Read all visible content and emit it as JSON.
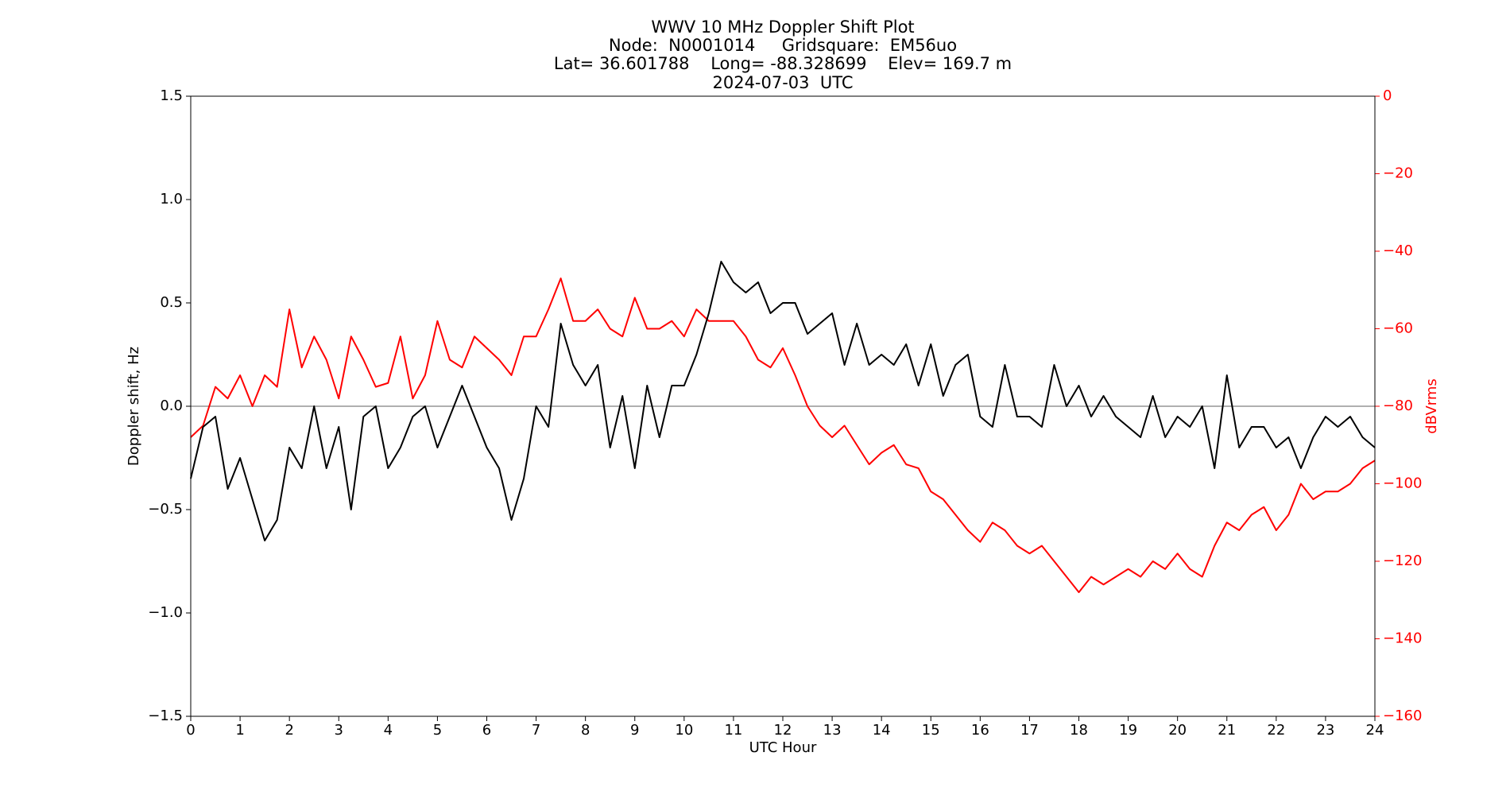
{
  "chart_data": {
    "type": "line",
    "title": "WWV 10 MHz Doppler Shift Plot",
    "subtitle": [
      "Node:  N0001014     Gridsquare:  EM56uo",
      "Lat= 36.601788    Long= -88.328699    Elev= 169.7 m",
      "2024-07-03  UTC"
    ],
    "xlabel": "UTC Hour",
    "ylabel": "Doppler shift, Hz",
    "y2label": "dBVrms",
    "xlim": [
      0,
      24
    ],
    "xticks": [
      0,
      1,
      2,
      3,
      4,
      5,
      6,
      7,
      8,
      9,
      10,
      11,
      12,
      13,
      14,
      15,
      16,
      17,
      18,
      19,
      20,
      21,
      22,
      23,
      24
    ],
    "ylim": [
      -1.5,
      1.5
    ],
    "yticks": [
      {
        "value": -1.5,
        "label": "−1.5"
      },
      {
        "value": -1.0,
        "label": "−1.0"
      },
      {
        "value": -0.5,
        "label": "−0.5"
      },
      {
        "value": 0,
        "label": "0.0"
      },
      0.5,
      {
        "value": 1.0,
        "label": "1.0"
      },
      1.5
    ],
    "y2lim": [
      -160,
      0
    ],
    "y2ticks": [
      {
        "value": -160,
        "label": "−160"
      },
      {
        "value": -140,
        "label": "−140"
      },
      {
        "value": -120,
        "label": "−120"
      },
      {
        "value": -100,
        "label": "−100"
      },
      {
        "value": -80,
        "label": "−80"
      },
      {
        "value": -60,
        "label": "−60"
      },
      {
        "value": -40,
        "label": "−40"
      },
      {
        "value": -20,
        "label": "−20"
      },
      0
    ],
    "y2color": "#ff0000",
    "reference_line": 0,
    "x": [
      0,
      0.25,
      0.5,
      0.75,
      1,
      1.25,
      1.5,
      1.75,
      2,
      2.25,
      2.5,
      2.75,
      3,
      3.25,
      3.5,
      3.75,
      4,
      4.25,
      4.5,
      4.75,
      5,
      5.25,
      5.5,
      5.75,
      6,
      6.25,
      6.5,
      6.75,
      7,
      7.25,
      7.5,
      7.75,
      8,
      8.25,
      8.5,
      8.75,
      9,
      9.25,
      9.5,
      9.75,
      10,
      10.25,
      10.5,
      10.75,
      11,
      11.25,
      11.5,
      11.75,
      12,
      12.25,
      12.5,
      12.75,
      13,
      13.25,
      13.5,
      13.75,
      14,
      14.25,
      14.5,
      14.75,
      15,
      15.25,
      15.5,
      15.75,
      16,
      16.25,
      16.5,
      16.75,
      17,
      17.25,
      17.5,
      17.75,
      18,
      18.25,
      18.5,
      18.75,
      19,
      19.25,
      19.5,
      19.75,
      20,
      20.25,
      20.5,
      20.75,
      21,
      21.25,
      21.5,
      21.75,
      22,
      22.25,
      22.5,
      22.75,
      23,
      23.25,
      23.5,
      23.75,
      24
    ],
    "series": [
      {
        "name": "Doppler shift",
        "color": "#000000",
        "values": [
          -0.35,
          -0.1,
          -0.05,
          -0.4,
          -0.25,
          -0.45,
          -0.65,
          -0.55,
          -0.2,
          -0.3,
          0.0,
          -0.3,
          -0.1,
          -0.5,
          -0.05,
          0.0,
          -0.3,
          -0.2,
          -0.05,
          0.0,
          -0.2,
          -0.05,
          0.1,
          -0.05,
          -0.2,
          -0.3,
          -0.55,
          -0.35,
          0.0,
          -0.1,
          0.4,
          0.2,
          0.1,
          0.2,
          -0.2,
          0.05,
          -0.3,
          0.1,
          -0.15,
          0.1,
          0.1,
          0.25,
          0.45,
          0.7,
          0.6,
          0.55,
          0.6,
          0.45,
          0.5,
          0.5,
          0.35,
          0.4,
          0.45,
          0.2,
          0.4,
          0.2,
          0.25,
          0.2,
          0.3,
          0.1,
          0.3,
          0.05,
          0.2,
          0.25,
          -0.05,
          -0.1,
          0.2,
          -0.05,
          -0.05,
          -0.1,
          0.2,
          0.0,
          0.1,
          -0.05,
          0.05,
          -0.05,
          -0.1,
          -0.15,
          0.05,
          -0.15,
          -0.05,
          -0.1,
          0.0,
          -0.3,
          0.15,
          -0.2,
          -0.1,
          -0.1,
          -0.2,
          -0.15,
          -0.3,
          -0.15,
          -0.05,
          -0.1,
          -0.05,
          -0.15,
          -0.2
        ]
      },
      {
        "name": "dBVrms",
        "color": "#ff0000",
        "axis": "y2",
        "values": [
          -88,
          -85,
          -75,
          -78,
          -72,
          -80,
          -72,
          -75,
          -55,
          -70,
          -62,
          -68,
          -78,
          -62,
          -68,
          -75,
          -74,
          -62,
          -78,
          -72,
          -58,
          -68,
          -70,
          -62,
          -65,
          -68,
          -72,
          -62,
          -62,
          -55,
          -47,
          -58,
          -58,
          -55,
          -60,
          -62,
          -52,
          -60,
          -60,
          -58,
          -62,
          -55,
          -58,
          -58,
          -58,
          -62,
          -68,
          -70,
          -65,
          -72,
          -80,
          -85,
          -88,
          -85,
          -90,
          -95,
          -92,
          -90,
          -95,
          -96,
          -102,
          -104,
          -108,
          -112,
          -115,
          -110,
          -112,
          -116,
          -118,
          -116,
          -120,
          -124,
          -128,
          -124,
          -126,
          -124,
          -122,
          -124,
          -120,
          -122,
          -118,
          -122,
          -124,
          -116,
          -110,
          -112,
          -108,
          -106,
          -112,
          -108,
          -100,
          -104,
          -102,
          -102,
          -100,
          -96,
          -94
        ]
      }
    ]
  }
}
